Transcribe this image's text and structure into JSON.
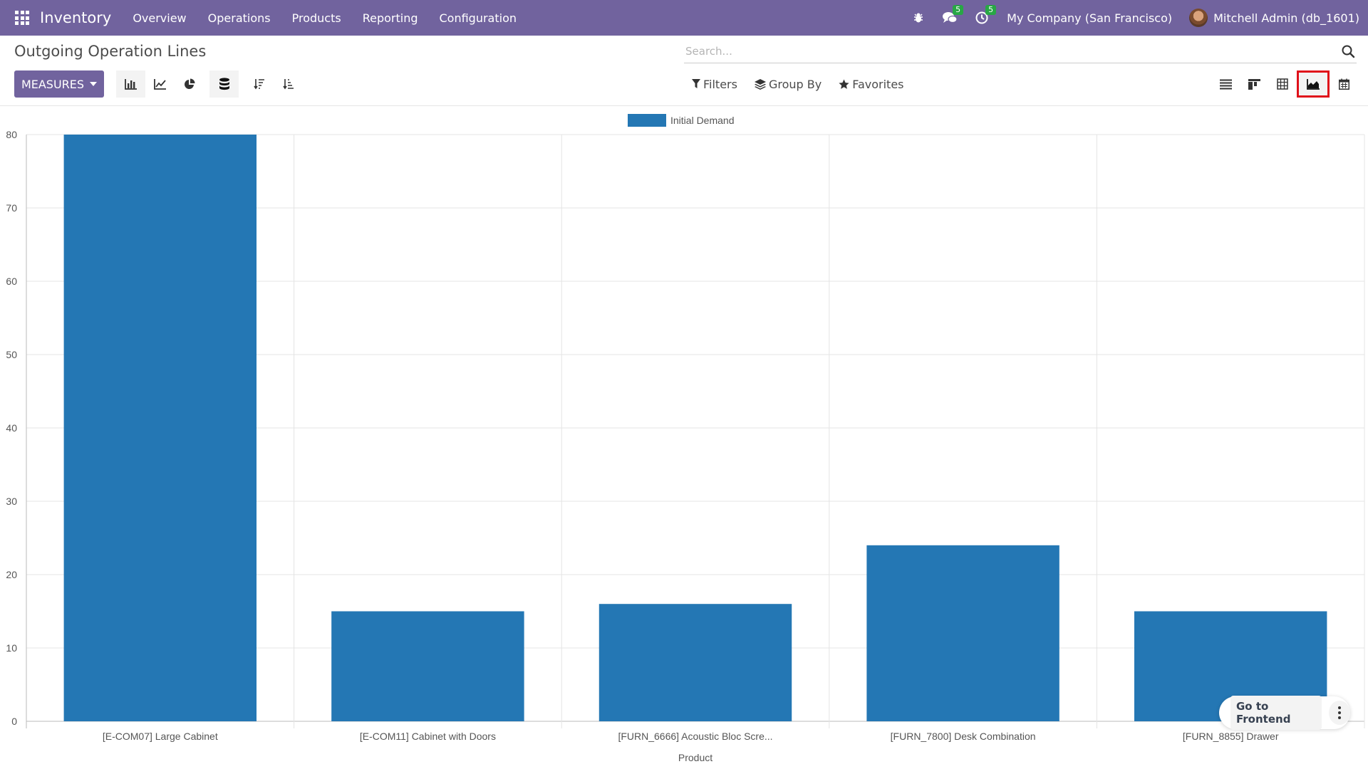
{
  "navbar": {
    "app_name": "Inventory",
    "menu": [
      {
        "label": "Overview"
      },
      {
        "label": "Operations"
      },
      {
        "label": "Products"
      },
      {
        "label": "Reporting"
      },
      {
        "label": "Configuration"
      }
    ],
    "messages_count": "5",
    "activities_count": "5",
    "company": "My Company (San Francisco)",
    "user": "Mitchell Admin (db_1601)"
  },
  "control_panel": {
    "title": "Outgoing Operation Lines",
    "search_placeholder": "Search...",
    "measures_label": "MEASURES",
    "filters_label": "Filters",
    "group_by_label": "Group By",
    "favorites_label": "Favorites",
    "active_view": "graph"
  },
  "colors": {
    "navbar": "#71639e",
    "bar": "#2477b4",
    "highlight": "#e0101a"
  },
  "chart_data": {
    "type": "bar",
    "categories": [
      "[E-COM07] Large Cabinet",
      "[E-COM11] Cabinet with Doors",
      "[FURN_6666] Acoustic Bloc Scre...",
      "[FURN_7800] Desk Combination",
      "[FURN_8855] Drawer"
    ],
    "series": [
      {
        "name": "Initial Demand",
        "values": [
          80,
          15,
          16,
          24,
          15
        ]
      }
    ],
    "xlabel": "Product",
    "ylabel": "",
    "ylim": [
      0,
      80
    ],
    "yticks": [
      0,
      10,
      20,
      30,
      40,
      50,
      60,
      70,
      80
    ],
    "grid": true,
    "legend": "top-center"
  },
  "frontend": {
    "label": "Go to Frontend"
  }
}
